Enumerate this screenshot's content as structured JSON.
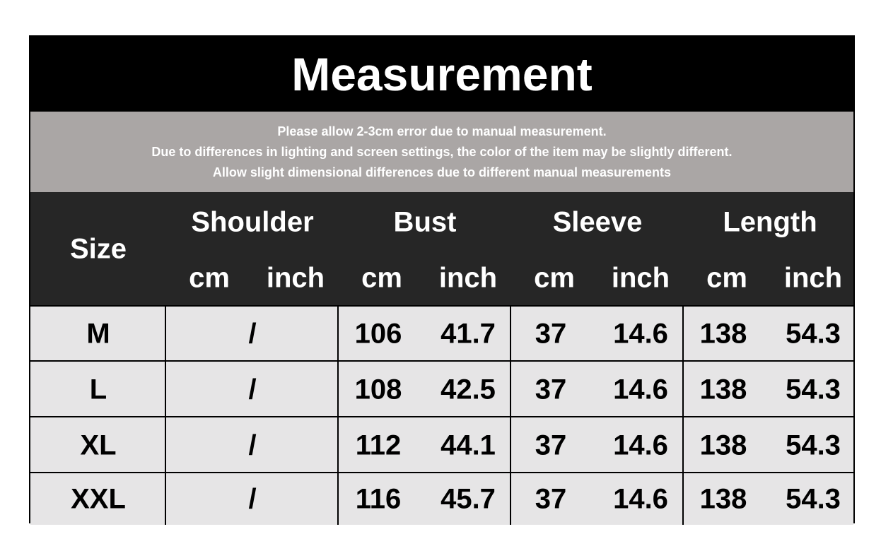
{
  "title": "Measurement",
  "notes": [
    "Please allow 2-3cm error due to manual measurement.",
    "Due to differences in lighting and screen settings, the color of the item may be slightly different.",
    "Allow slight dimensional differences due to different manual measurements"
  ],
  "header": {
    "size": "Size",
    "groups": [
      "Shoulder",
      "Bust",
      "Sleeve",
      "Length"
    ],
    "cm": "cm",
    "inch": "inch"
  },
  "rows": [
    {
      "size": "M",
      "shoulder": "/",
      "bust_cm": "106",
      "bust_inch": "41.7",
      "sleeve_cm": "37",
      "sleeve_inch": "14.6",
      "length_cm": "138",
      "length_inch": "54.3"
    },
    {
      "size": "L",
      "shoulder": "/",
      "bust_cm": "108",
      "bust_inch": "42.5",
      "sleeve_cm": "37",
      "sleeve_inch": "14.6",
      "length_cm": "138",
      "length_inch": "54.3"
    },
    {
      "size": "XL",
      "shoulder": "/",
      "bust_cm": "112",
      "bust_inch": "44.1",
      "sleeve_cm": "37",
      "sleeve_inch": "14.6",
      "length_cm": "138",
      "length_inch": "54.3"
    },
    {
      "size": "XXL",
      "shoulder": "/",
      "bust_cm": "116",
      "bust_inch": "45.7",
      "sleeve_cm": "37",
      "sleeve_inch": "14.6",
      "length_cm": "138",
      "length_inch": "54.3"
    }
  ],
  "colors": {
    "title_bg": "#000000",
    "notes_bg": "#aaa6a5",
    "header_bg": "#262626",
    "cell_bg": "#e6e5e6"
  }
}
